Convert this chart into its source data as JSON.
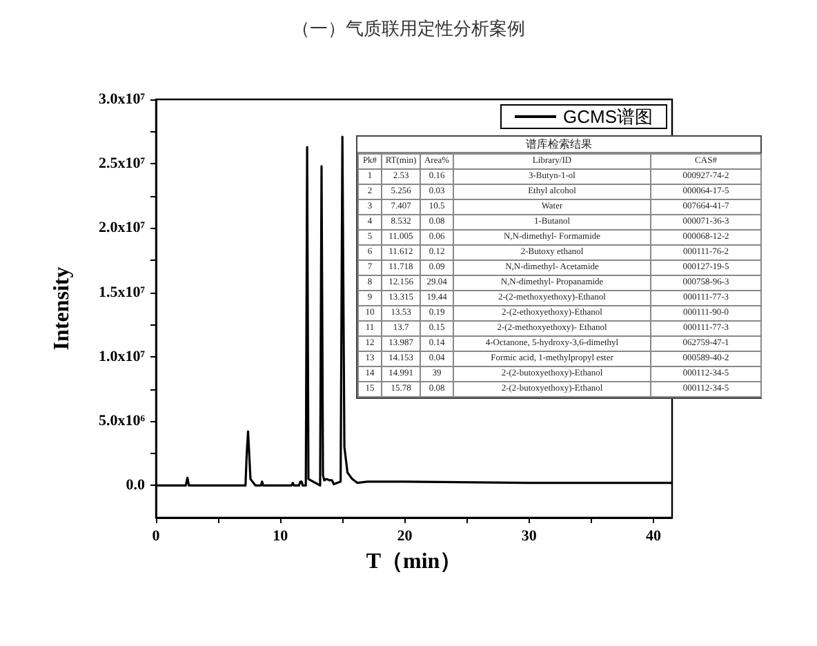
{
  "chart_data": {
    "type": "line",
    "title": "（一）气质联用定性分析案例",
    "xlabel": "T（min）",
    "ylabel": "Intensity",
    "x": [
      0,
      2.4,
      2.53,
      2.65,
      7.2,
      7.3,
      7.407,
      7.6,
      8.0,
      8.45,
      8.532,
      8.62,
      10.9,
      11.005,
      11.1,
      11.5,
      11.612,
      11.718,
      11.8,
      12.05,
      12.156,
      12.26,
      13.2,
      13.315,
      13.43,
      13.53,
      13.7,
      13.987,
      14.153,
      14.3,
      14.85,
      14.991,
      15.15,
      15.4,
      15.78,
      16.2,
      17,
      20,
      30,
      41.5
    ],
    "series": [
      {
        "name": "GCMS谱图",
        "color": "#000000",
        "values": [
          0,
          0,
          600000,
          0,
          0,
          2500000,
          4200000,
          500000,
          0,
          0,
          300000,
          0,
          0,
          200000,
          0,
          0,
          300000,
          300000,
          0,
          0,
          26300000,
          500000,
          0,
          24800000,
          800000,
          400000,
          500000,
          400000,
          400000,
          100000,
          300000,
          27100000,
          3000000,
          1000000,
          500000,
          200000,
          300000,
          300000,
          200000,
          200000
        ]
      }
    ],
    "xlim": [
      0,
      41.5
    ],
    "xticks": [
      0,
      10,
      20,
      30,
      40,
      {
        "value": 5,
        "label": null
      },
      {
        "value": 15,
        "label": null
      },
      {
        "value": 25,
        "label": null
      },
      {
        "value": 35,
        "label": null
      }
    ],
    "ylim": [
      -2500000,
      30000000
    ],
    "yticks": [
      {
        "value": 0,
        "label": "0.0"
      },
      {
        "value": 5000000,
        "label": "5.0x10⁶"
      },
      {
        "value": 10000000,
        "label": "1.0x10⁷"
      },
      {
        "value": 15000000,
        "label": "1.5x10⁷"
      },
      {
        "value": 20000000,
        "label": "2.0x10⁷"
      },
      {
        "value": 25000000,
        "label": "2.5x10⁷"
      },
      {
        "value": 30000000,
        "label": "3.0x10⁷"
      },
      {
        "value": 2500000,
        "label": null
      },
      {
        "value": 7500000,
        "label": null
      },
      {
        "value": 12500000,
        "label": null
      },
      {
        "value": 17500000,
        "label": null
      },
      {
        "value": 22500000,
        "label": null
      },
      {
        "value": 27500000,
        "label": null
      }
    ],
    "legend": "top right",
    "grid": false,
    "marker": "none",
    "line_style": "solid",
    "annotations": [
      "谱库检索结果",
      "Pk#",
      "RT(min)",
      "Area%",
      "Library/ID",
      "CAS#",
      "1",
      "2.53",
      "0.16",
      "3-Butyn-1-ol",
      "000927-74-2",
      "2",
      "5.256",
      "0.03",
      "Ethyl alcohol",
      "000064-17-5",
      "3",
      "7.407",
      "10.5",
      "Water",
      "007664-41-7",
      "4",
      "8.532",
      "0.08",
      "1-Butanol",
      "000071-36-3",
      "5",
      "11.005",
      "0.06",
      "N,N-dimethyl- Formamide",
      "000068-12-2",
      "6",
      "11.612",
      "0.12",
      "2-Butoxy ethanol",
      "000111-76-2",
      "7",
      "11.718",
      "0.09",
      "N,N-dimethyl- Acetamide",
      "000127-19-5",
      "8",
      "12.156",
      "29.04",
      "N,N-dimethyl- Propanamide",
      "000758-96-3",
      "9",
      "13.315",
      "19.44",
      "2-(2-methoxyethoxy)-Ethanol",
      "000111-77-3",
      "10",
      "13.53",
      "0.19",
      "2-(2-ethoxyethoxy)-Ethanol",
      "000111-90-0",
      "11",
      "13.7",
      "0.15",
      "2-(2-methoxyethoxy)- Ethanol",
      "000111-77-3",
      "12",
      "13.987",
      "0.14",
      "4-Octanone, 5-hydroxy-3,6-dimethyl",
      "062759-47-1",
      "13",
      "14.153",
      "0.04",
      "Formic acid, 1-methylpropyl ester",
      "000589-40-2",
      "14",
      "14.991",
      "39",
      "2-(2-butoxyethoxy)-Ethanol",
      "000112-34-5",
      "15",
      "15.78",
      "0.08",
      "2-(2-butoxyethoxy)-Ethanol",
      "000112-34-5"
    ]
  }
}
